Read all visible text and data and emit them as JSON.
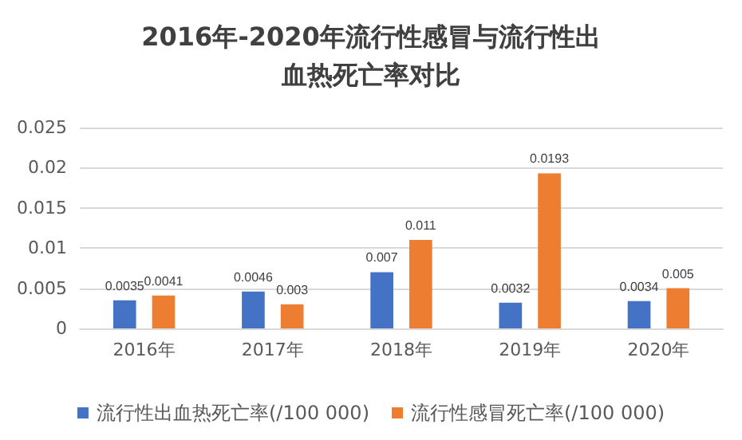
{
  "chart_data": {
    "type": "bar",
    "title": "2016年-2020年流行性感冒与流行性出血热死亡率对比",
    "categories": [
      "2016年",
      "2017年",
      "2018年",
      "2019年",
      "2020年"
    ],
    "series": [
      {
        "name": "流行性出血热死亡率(/100 000)",
        "color": "#4472c4",
        "values": [
          0.0035,
          0.0046,
          0.007,
          0.0032,
          0.0034
        ]
      },
      {
        "name": "流行性感冒死亡率(/100 000)",
        "color": "#ed7d31",
        "values": [
          0.0041,
          0.003,
          0.011,
          0.0193,
          0.005
        ]
      }
    ],
    "ylim": [
      0,
      0.025
    ],
    "yticks": [
      0,
      0.005,
      0.01,
      0.015,
      0.02,
      0.025
    ],
    "grid": "y",
    "legend": "bottom",
    "data_labels": true
  }
}
